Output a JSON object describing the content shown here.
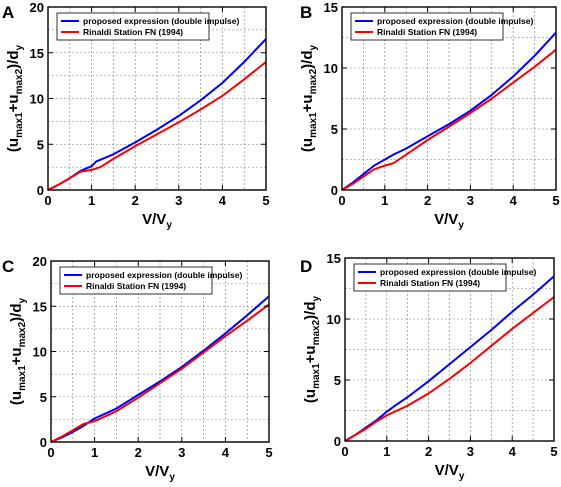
{
  "chart_data": [
    {
      "panel": "A",
      "type": "line",
      "xlabel": "V/V_y",
      "ylabel": "(u_max1+u_max2)/d_y",
      "xlim": [
        0,
        5
      ],
      "ylim": [
        0,
        20
      ],
      "xticks": [
        0,
        1,
        2,
        3,
        4,
        5
      ],
      "yticks": [
        0,
        5,
        10,
        15,
        20
      ],
      "grid": true,
      "legend_position": "top-left",
      "series": [
        {
          "name": "proposed expression (double impulse)",
          "color": "#0000ff",
          "x": [
            0,
            0.25,
            0.5,
            0.75,
            1.0,
            1.1,
            1.5,
            2.0,
            2.5,
            3.0,
            3.5,
            4.0,
            4.5,
            5.0
          ],
          "y": [
            0,
            0.6,
            1.3,
            2.1,
            2.6,
            3.1,
            3.9,
            5.2,
            6.6,
            8.1,
            9.8,
            11.7,
            14.0,
            16.5
          ]
        },
        {
          "name": "Rinaldi Station FN (1994)",
          "color": "#ff0000",
          "x": [
            0,
            0.25,
            0.5,
            0.75,
            1.0,
            1.2,
            1.5,
            2.0,
            2.5,
            3.0,
            3.5,
            4.0,
            4.5,
            5.0
          ],
          "y": [
            0,
            0.6,
            1.3,
            2.0,
            2.2,
            2.5,
            3.4,
            4.8,
            6.1,
            7.4,
            8.8,
            10.3,
            12.1,
            14.0
          ]
        }
      ]
    },
    {
      "panel": "B",
      "type": "line",
      "xlabel": "V/V_y",
      "ylabel": "(u_max1+u_max2)/d_y",
      "xlim": [
        0,
        5
      ],
      "ylim": [
        0,
        15
      ],
      "xticks": [
        0,
        1,
        2,
        3,
        4,
        5
      ],
      "yticks": [
        0,
        5,
        10,
        15
      ],
      "grid": true,
      "legend_position": "top-left",
      "series": [
        {
          "name": "proposed expression (double impulse)",
          "color": "#0000ff",
          "x": [
            0,
            0.25,
            0.5,
            0.75,
            1.0,
            1.2,
            1.5,
            2.0,
            2.5,
            3.0,
            3.5,
            4.0,
            4.5,
            5.0
          ],
          "y": [
            0,
            0.6,
            1.3,
            2.0,
            2.5,
            2.9,
            3.4,
            4.4,
            5.4,
            6.5,
            7.8,
            9.3,
            11.0,
            12.9
          ]
        },
        {
          "name": "Rinaldi Station FN (1994)",
          "color": "#ff0000",
          "x": [
            0,
            0.25,
            0.5,
            0.75,
            1.0,
            1.2,
            1.5,
            2.0,
            2.5,
            3.0,
            3.5,
            4.0,
            4.5,
            5.0
          ],
          "y": [
            0,
            0.5,
            1.1,
            1.7,
            2.0,
            2.2,
            2.9,
            4.1,
            5.2,
            6.3,
            7.5,
            8.8,
            10.1,
            11.5
          ]
        }
      ]
    },
    {
      "panel": "C",
      "type": "line",
      "xlabel": "V/V_y",
      "ylabel": "(u_max1+u_max2)/d_y",
      "xlim": [
        0,
        5
      ],
      "ylim": [
        0,
        20
      ],
      "xticks": [
        0,
        1,
        2,
        3,
        4,
        5
      ],
      "yticks": [
        0,
        5,
        10,
        15,
        20
      ],
      "grid": true,
      "legend_position": "top-left",
      "series": [
        {
          "name": "proposed expression (double impulse)",
          "color": "#0000ff",
          "x": [
            0,
            0.25,
            0.5,
            0.75,
            1.0,
            1.5,
            2.0,
            2.5,
            3.0,
            3.5,
            4.0,
            4.5,
            5.0
          ],
          "y": [
            0,
            0.5,
            1.1,
            1.8,
            2.6,
            3.7,
            5.2,
            6.7,
            8.3,
            10.1,
            12.0,
            14.0,
            16.1
          ]
        },
        {
          "name": "Rinaldi Station FN (1994)",
          "color": "#ff0000",
          "x": [
            0,
            0.25,
            0.5,
            0.75,
            1.0,
            1.5,
            2.0,
            2.5,
            3.0,
            3.5,
            4.0,
            4.5,
            5.0
          ],
          "y": [
            0,
            0.6,
            1.3,
            2.0,
            2.3,
            3.4,
            4.9,
            6.5,
            8.1,
            9.9,
            11.7,
            13.4,
            15.2
          ]
        }
      ]
    },
    {
      "panel": "D",
      "type": "line",
      "xlabel": "V/V_y",
      "ylabel": "(u_max1+u_max2)/d_y",
      "xlim": [
        0,
        5
      ],
      "ylim": [
        0,
        15
      ],
      "xticks": [
        0,
        1,
        2,
        3,
        4,
        5
      ],
      "yticks": [
        0,
        5,
        10,
        15
      ],
      "grid": true,
      "legend_position": "top-left",
      "series": [
        {
          "name": "proposed expression (double impulse)",
          "color": "#0000ff",
          "x": [
            0,
            0.25,
            0.5,
            0.75,
            1.0,
            1.2,
            1.5,
            2.0,
            2.5,
            3.0,
            3.5,
            4.0,
            4.5,
            5.0
          ],
          "y": [
            0,
            0.5,
            1.1,
            1.7,
            2.4,
            2.9,
            3.6,
            4.9,
            6.3,
            7.7,
            9.1,
            10.6,
            12.0,
            13.5
          ]
        },
        {
          "name": "Rinaldi Station FN (1994)",
          "color": "#ff0000",
          "x": [
            0,
            0.25,
            0.5,
            0.75,
            1.0,
            1.5,
            2.0,
            2.5,
            3.0,
            3.5,
            4.0,
            4.5,
            5.0
          ],
          "y": [
            0,
            0.5,
            1.0,
            1.6,
            2.1,
            2.9,
            3.9,
            5.1,
            6.4,
            7.8,
            9.2,
            10.5,
            11.8
          ]
        }
      ]
    }
  ]
}
